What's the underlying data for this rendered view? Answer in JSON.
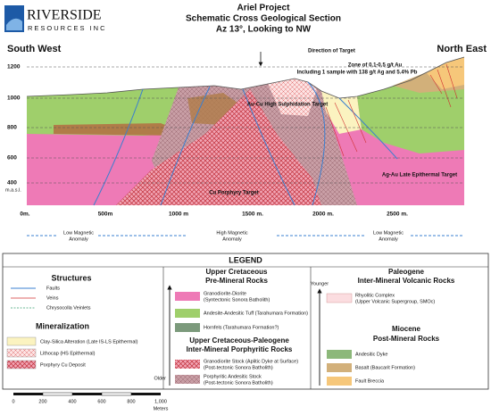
{
  "logo": {
    "name": "RIVERSIDE",
    "subtitle": "RESOURCES INC"
  },
  "title": [
    "Ariel Project",
    "Schematic Cross Geological Section",
    "Az 13°, Looking to NW"
  ],
  "section": {
    "left_label": "South West",
    "right_label": "North East",
    "direction": "Direction of Target",
    "zone_note": [
      "Zone of 0.1-0.5 g/t Au",
      "Including 1 sample with 138 g/t Ag and 5.4% Pb"
    ],
    "targets": [
      "Au-Cu High Sulphidation Target",
      "Cu Porphyry Target",
      "Ag-Au Late Epithermal Target"
    ],
    "elevations": [
      "1200",
      "1000",
      "800",
      "600",
      "400"
    ],
    "elevation_unit": "m.a.s.l.",
    "distances": [
      "0m.",
      "500m",
      "1000 m",
      "1500 m.",
      "2000 m.",
      "2500 m."
    ]
  },
  "anomalies": [
    [
      "Low Magnetic",
      "Anomaly"
    ],
    [
      "High Magnetic",
      "Anomaly"
    ],
    [
      "Low Magnetic",
      "Anomaly"
    ]
  ],
  "legend": {
    "title": "LEGEND",
    "structures": {
      "title": "Structures",
      "items": [
        "Faults",
        "Veins",
        "Chrysocolla Veinlets"
      ]
    },
    "mineralization": {
      "title": "Mineralization",
      "items": [
        "Clay-Silica Alteration (Late IS-LS Epithermal)",
        "Lithocap (HS Epithermal)",
        "Porphyry Cu Deposit"
      ]
    },
    "pre_mineral": {
      "title": [
        "Upper Cretaceous",
        "Pre-Mineral Rocks"
      ],
      "items": [
        [
          "Granodiorite-Diorite",
          "(Syntectonic Sonora Batholith)"
        ],
        [
          "Andesite-Andesitic Tuff (Tarahumara Formation)"
        ],
        [
          "Hornfels (Tarahumara Formation?)"
        ]
      ]
    },
    "porphyritic": {
      "title": [
        "Upper Cretaceous-Paleogene",
        "Inter-Mineral Porphyritic Rocks"
      ],
      "items": [
        [
          "Granodiorite Stock (Aplitic Dyke at Surface)",
          "(Post-tectonic Sonora Batholith)"
        ],
        [
          "Porphyritic Andesitic Stock",
          "(Post-tectonic Sonora Batholith)"
        ]
      ]
    },
    "older": "Older",
    "younger": "Younger",
    "volcanic": {
      "title": [
        "Paleogene",
        "Inter-Mineral Volcanic Rocks"
      ],
      "items": [
        [
          "Rhyolitic Complex",
          "(Upper Volcanic Supergroup, SMOc)"
        ]
      ]
    },
    "post_mineral": {
      "title": [
        "Miocene",
        "Post-Mineral Rocks"
      ],
      "items": [
        "Andesitic Dyke",
        "Basalt (Baucarit Formation)",
        "Fault Breccia"
      ]
    }
  },
  "scale": {
    "ticks": [
      "0",
      "200",
      "400",
      "600",
      "800",
      "1,000"
    ],
    "unit": "Meters"
  }
}
